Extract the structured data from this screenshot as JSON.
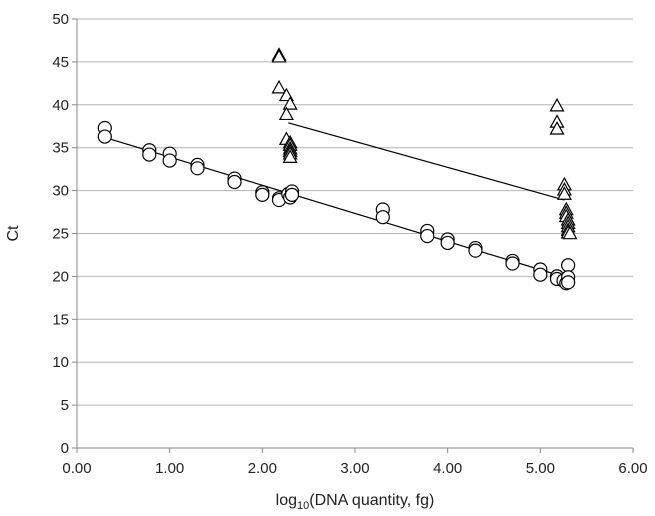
{
  "chart_data": {
    "type": "scatter",
    "title": "",
    "xlabel_prefix": "log",
    "xlabel_subscript": "10",
    "xlabel_suffix": "(DNA quantity, fg)",
    "ylabel": "Ct",
    "xlim": [
      0,
      6
    ],
    "ylim": [
      0,
      50
    ],
    "x_ticks": [
      0,
      1,
      2,
      3,
      4,
      5,
      6
    ],
    "x_tick_labels": [
      "0.00",
      "1.00",
      "2.00",
      "3.00",
      "4.00",
      "5.00",
      "6.00"
    ],
    "y_ticks": [
      0,
      5,
      10,
      15,
      20,
      25,
      30,
      35,
      40,
      45,
      50
    ],
    "y_tick_labels": [
      "0",
      "5",
      "10",
      "15",
      "20",
      "25",
      "30",
      "35",
      "40",
      "45",
      "50"
    ],
    "grid": "horizontal",
    "legend": "none",
    "series": [
      {
        "marker": "circle",
        "points": [
          [
            0.3,
            37.3
          ],
          [
            0.3,
            36.3
          ],
          [
            0.78,
            34.7
          ],
          [
            0.78,
            34.2
          ],
          [
            1.0,
            34.3
          ],
          [
            1.0,
            33.5
          ],
          [
            1.3,
            33.0
          ],
          [
            1.3,
            32.6
          ],
          [
            1.7,
            31.4
          ],
          [
            1.7,
            31.0
          ],
          [
            2.0,
            29.8
          ],
          [
            2.0,
            29.5
          ],
          [
            2.18,
            29.1
          ],
          [
            2.18,
            28.9
          ],
          [
            2.28,
            29.6
          ],
          [
            2.3,
            29.2
          ],
          [
            2.32,
            29.9
          ],
          [
            2.32,
            29.5
          ],
          [
            3.3,
            27.8
          ],
          [
            3.3,
            26.9
          ],
          [
            3.78,
            25.3
          ],
          [
            3.78,
            24.7
          ],
          [
            4.0,
            24.3
          ],
          [
            4.0,
            23.9
          ],
          [
            4.3,
            23.3
          ],
          [
            4.3,
            23.0
          ],
          [
            4.7,
            21.8
          ],
          [
            4.7,
            21.5
          ],
          [
            5.0,
            20.8
          ],
          [
            5.0,
            20.2
          ],
          [
            5.18,
            20.0
          ],
          [
            5.18,
            19.7
          ],
          [
            5.25,
            19.5
          ],
          [
            5.28,
            19.2
          ],
          [
            5.3,
            21.3
          ],
          [
            5.3,
            19.9
          ],
          [
            5.3,
            19.3
          ]
        ]
      },
      {
        "marker": "triangle",
        "points": [
          [
            2.18,
            45.8
          ],
          [
            2.18,
            45.6
          ],
          [
            2.18,
            42.0
          ],
          [
            2.26,
            41.1
          ],
          [
            2.3,
            40.1
          ],
          [
            2.26,
            38.9
          ],
          [
            2.26,
            36.0
          ],
          [
            2.3,
            35.6
          ],
          [
            2.3,
            35.3
          ],
          [
            2.3,
            34.9
          ],
          [
            2.3,
            34.6
          ],
          [
            2.3,
            34.3
          ],
          [
            2.3,
            33.9
          ],
          [
            5.18,
            39.9
          ],
          [
            5.18,
            38.0
          ],
          [
            5.18,
            37.2
          ],
          [
            5.26,
            30.7
          ],
          [
            5.26,
            30.1
          ],
          [
            5.26,
            29.6
          ],
          [
            5.28,
            27.8
          ],
          [
            5.28,
            27.4
          ],
          [
            5.28,
            27.0
          ],
          [
            5.3,
            26.6
          ],
          [
            5.3,
            26.2
          ],
          [
            5.3,
            25.8
          ],
          [
            5.3,
            25.4
          ],
          [
            5.3,
            25.1
          ],
          [
            5.32,
            25.0
          ]
        ]
      }
    ],
    "trendlines": [
      {
        "x": [
          0.3,
          5.3
        ],
        "y": [
          36.2,
          19.8
        ]
      },
      {
        "x": [
          2.28,
          5.26
        ],
        "y": [
          37.9,
          28.9
        ]
      }
    ]
  }
}
